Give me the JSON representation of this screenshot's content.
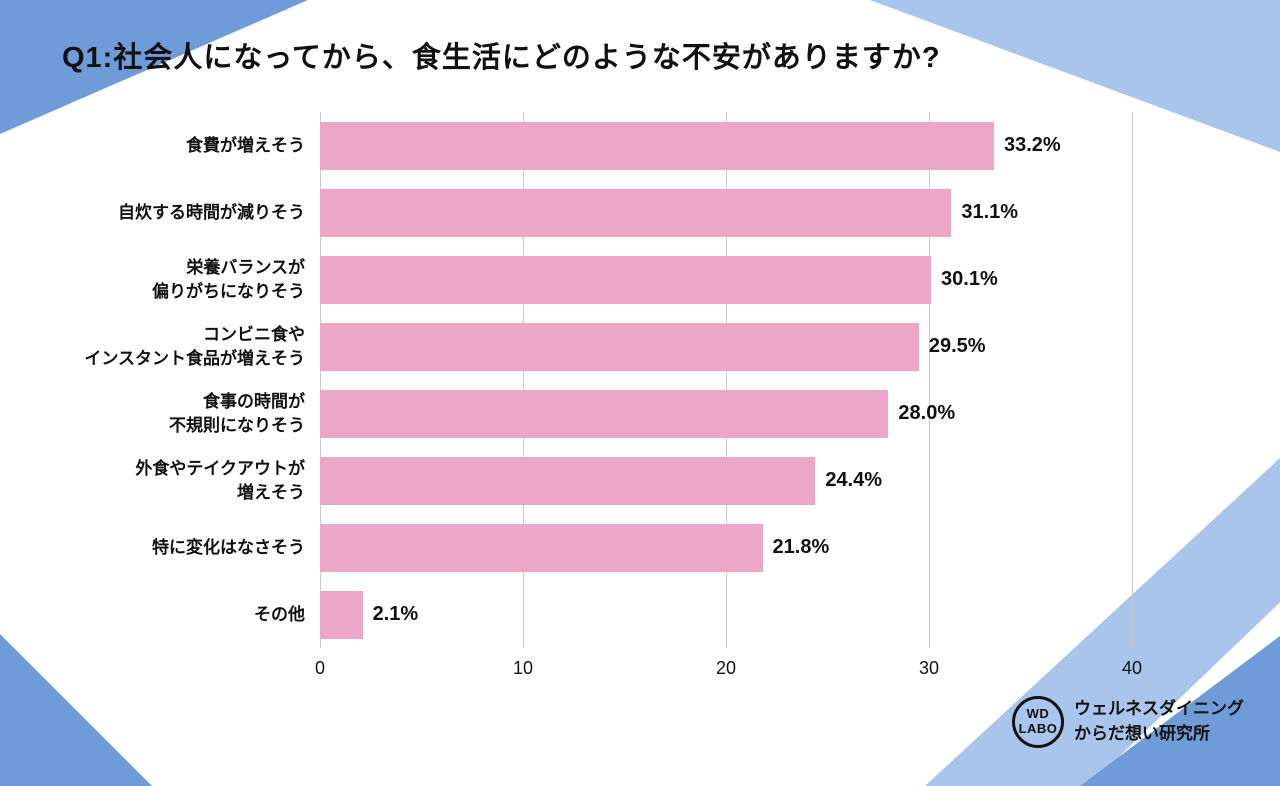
{
  "title": "Q1:社会人になってから、食生活にどのような不安がありますか?",
  "chart_data": {
    "type": "bar",
    "orientation": "horizontal",
    "title": "Q1:社会人になってから、食生活にどのような不安がありますか?",
    "categories": [
      "食費が増えそう",
      "自炊する時間が減りそう",
      "栄養バランスが\n偏りがちになりそう",
      "コンビニ食や\nインスタント食品が増えそう",
      "食事の時間が\n不規則になりそう",
      "外食やテイクアウトが\n増えそう",
      "特に変化はなさそう",
      "その他"
    ],
    "values": [
      33.2,
      31.1,
      30.1,
      29.5,
      28.0,
      24.4,
      21.8,
      2.1
    ],
    "value_labels": [
      "33.2%",
      "31.1%",
      "30.1%",
      "29.5%",
      "28.0%",
      "24.4%",
      "21.8%",
      "2.1%"
    ],
    "xlim": [
      0,
      40
    ],
    "x_ticks": [
      0,
      10,
      20,
      30,
      40
    ],
    "grid": true,
    "legend": false
  },
  "colors": {
    "bar_pink": "#EBA6C8",
    "accent_blue": "#6F9CD8",
    "accent_blue_light": "#A9C5EB",
    "gridline": "#C9C9C9",
    "text": "#111111"
  },
  "footer": {
    "logo_line1": "WD",
    "logo_line2": "LABO",
    "org_line1": "ウェルネスダイニング",
    "org_line2": "からだ想い研究所"
  }
}
